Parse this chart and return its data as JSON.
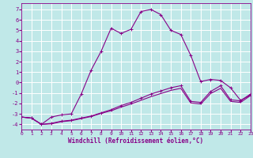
{
  "xlabel": "Windchill (Refroidissement éolien,°C)",
  "background_color": "#c0e8e8",
  "grid_color": "#ffffff",
  "line_color": "#880088",
  "xlim": [
    0,
    23
  ],
  "ylim": [
    -4.5,
    7.6
  ],
  "xticks": [
    0,
    1,
    2,
    3,
    4,
    5,
    6,
    7,
    8,
    9,
    10,
    11,
    12,
    13,
    14,
    15,
    16,
    17,
    18,
    19,
    20,
    21,
    22,
    23
  ],
  "yticks": [
    -4,
    -3,
    -2,
    -1,
    0,
    1,
    2,
    3,
    4,
    5,
    6,
    7
  ],
  "curve1_x": [
    0,
    1,
    2,
    3,
    4,
    5,
    6,
    7,
    8,
    9,
    10,
    11,
    12,
    13,
    14,
    15,
    16,
    17,
    18,
    19,
    20,
    21,
    22,
    23
  ],
  "curve1_y": [
    -3.3,
    -3.4,
    -4.0,
    -3.3,
    -3.1,
    -3.0,
    -1.1,
    1.2,
    3.0,
    5.2,
    4.7,
    5.1,
    6.8,
    7.0,
    6.5,
    5.0,
    4.6,
    2.6,
    0.1,
    0.3,
    0.2,
    -0.5,
    -1.7,
    -1.2
  ],
  "curve2_x": [
    0,
    1,
    2,
    3,
    4,
    5,
    6,
    7,
    8,
    9,
    10,
    11,
    12,
    13,
    14,
    15,
    16,
    17,
    18,
    19,
    20,
    21,
    22,
    23
  ],
  "curve2_y": [
    -3.3,
    -3.4,
    -4.0,
    -3.9,
    -3.7,
    -3.6,
    -3.4,
    -3.2,
    -2.9,
    -2.6,
    -2.2,
    -1.9,
    -1.5,
    -1.1,
    -0.8,
    -0.5,
    -0.3,
    -1.8,
    -1.9,
    -0.85,
    -0.3,
    -1.65,
    -1.75,
    -1.1
  ],
  "curve3_x": [
    0,
    1,
    2,
    3,
    4,
    5,
    6,
    7,
    8,
    9,
    10,
    11,
    12,
    13,
    14,
    15,
    16,
    17,
    18,
    19,
    20,
    21,
    22,
    23
  ],
  "curve3_y": [
    -3.3,
    -3.4,
    -4.0,
    -3.95,
    -3.75,
    -3.65,
    -3.45,
    -3.25,
    -2.95,
    -2.7,
    -2.35,
    -2.05,
    -1.7,
    -1.35,
    -1.05,
    -0.75,
    -0.55,
    -1.95,
    -2.05,
    -1.05,
    -0.55,
    -1.8,
    -1.9,
    -1.25
  ]
}
